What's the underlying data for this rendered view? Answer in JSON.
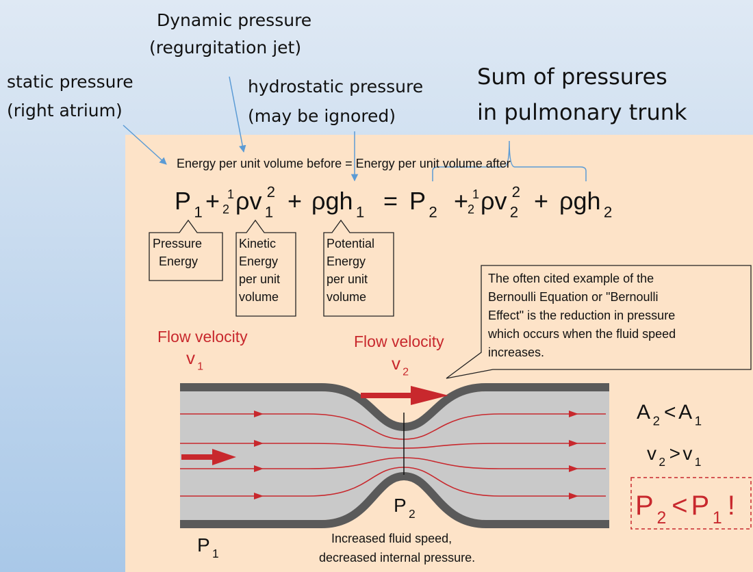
{
  "annotations": {
    "dynamic": [
      "Dynamic pressure",
      "(regurgitation jet)"
    ],
    "static": [
      "static pressure",
      "(right atrium)"
    ],
    "hydrostatic": [
      "hydrostatic pressure",
      "(may be ignored)"
    ],
    "sum": [
      "Sum of pressures",
      "in pulmonary trunk"
    ]
  },
  "heading": "Energy per unit volume before = Energy per unit volume after",
  "equation": [
    {
      "base": "P",
      "sub": "1"
    },
    {
      "base": "+"
    },
    {
      "frac": [
        "1",
        "2"
      ],
      "base": "ρv",
      "sub": "1",
      "sup": "2"
    },
    {
      "base": "+"
    },
    {
      "base": "ρgh",
      "sub": "1"
    },
    {
      "base": "="
    },
    {
      "base": "P",
      "sub": "2"
    },
    {
      "base": "+"
    },
    {
      "frac": [
        "1",
        "2"
      ],
      "base": "ρv",
      "sub": "2",
      "sup": "2"
    },
    {
      "base": "+"
    },
    {
      "base": "ρgh",
      "sub": "2"
    }
  ],
  "boxes": [
    [
      "Pressure",
      "Energy"
    ],
    [
      "Kinetic",
      "Energy",
      "per unit",
      "volume"
    ],
    [
      "Potential",
      "Energy",
      "per unit",
      "volume"
    ]
  ],
  "callout": [
    "The often cited example of the",
    "Bernoulli Equation or \"Bernoulli",
    "Effect\" is the reduction in pressure",
    "which occurs when the fluid speed",
    "increases."
  ],
  "flow": [
    {
      "label": "Flow velocity",
      "symbol": "v",
      "sub": "1"
    },
    {
      "label": "Flow velocity",
      "symbol": "v",
      "sub": "2"
    }
  ],
  "relations": [
    {
      "a": "A",
      "a_sub": "2",
      "op": "<",
      "b": "A",
      "b_sub": "1"
    },
    {
      "a": "v",
      "a_sub": "2",
      "op": ">",
      "b": "v",
      "b_sub": "1"
    },
    {
      "a": "P",
      "a_sub": "2",
      "op": "<",
      "b": "P",
      "b_sub": "1",
      "suffix": "!"
    }
  ],
  "pressure_labels": [
    {
      "symbol": "P",
      "sub": "2"
    },
    {
      "symbol": "P",
      "sub": "1"
    }
  ],
  "caption": [
    "Increased fluid speed,",
    "decreased internal pressure."
  ]
}
